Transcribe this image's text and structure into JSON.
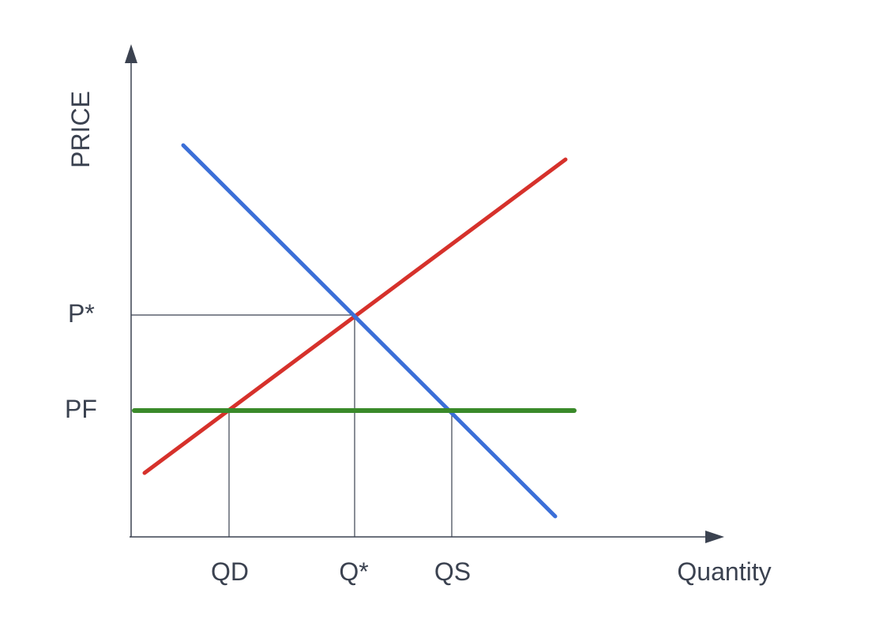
{
  "diagram": {
    "y_axis_label": "PRICE",
    "x_axis_label": "Quantity",
    "price_labels": {
      "equilibrium": "P*",
      "floor": "PF"
    },
    "quantity_labels": {
      "demanded": "QD",
      "equilibrium": "Q*",
      "supplied": "QS"
    },
    "colors": {
      "axes": "#3b4250",
      "demand_curve": "#3b6fd8",
      "supply_curve": "#d6312b",
      "price_floor": "#3a8a2a",
      "guide_lines": "#3b4250",
      "label_text": "#3b4250"
    }
  }
}
